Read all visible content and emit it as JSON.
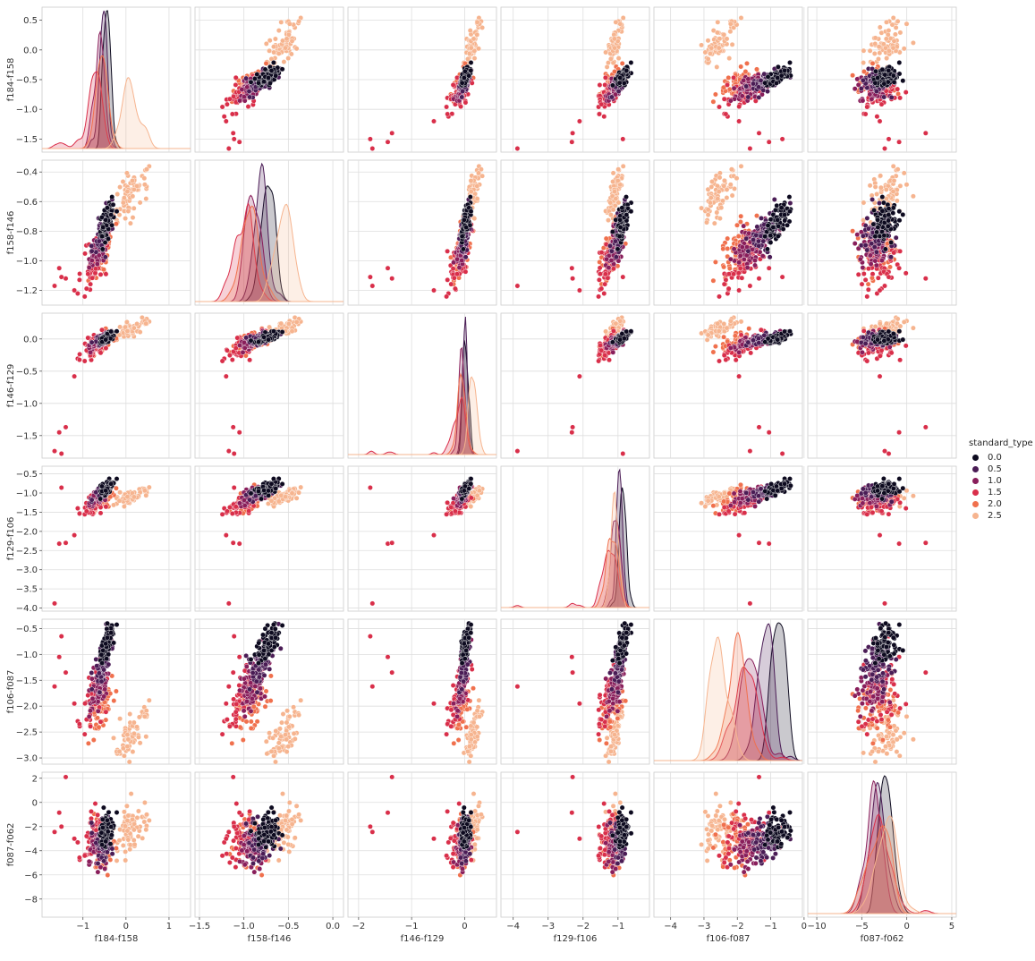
{
  "chart_data": {
    "type": "scatter",
    "kind": "pairplot",
    "hue": "standard_type",
    "diag_kind": "kde",
    "grid": true,
    "legend_placement": "right",
    "variables": [
      "f184-f158",
      "f158-f146",
      "f146-f129",
      "f129-f106",
      "f106-f087",
      "f087-f062"
    ],
    "axes": [
      {
        "name": "f184-f158",
        "lim": [
          -1.95,
          1.5
        ],
        "ticks": [
          -1,
          0,
          1
        ],
        "row_lim": [
          -1.72,
          0.72
        ],
        "row_ticks": [
          -1.5,
          -1.0,
          -0.5,
          0.0,
          0.5
        ],
        "row_tick_labels": [
          "−1.5",
          "−1.0",
          "−0.5",
          "0.0",
          "0.5"
        ]
      },
      {
        "name": "f158-f146",
        "lim": [
          -1.55,
          0.12
        ],
        "ticks": [
          -1.5,
          -1.0,
          -0.5,
          0.0
        ],
        "row_lim": [
          -1.3,
          -0.32
        ],
        "row_ticks": [
          -1.2,
          -1.0,
          -0.8,
          -0.6,
          -0.4
        ],
        "row_tick_labels": [
          "−1.2",
          "−1.0",
          "−0.8",
          "−0.6",
          "−0.4"
        ]
      },
      {
        "name": "f146-f129",
        "lim": [
          -2.2,
          0.6
        ],
        "ticks": [
          -2,
          -1,
          0
        ],
        "row_lim": [
          -1.85,
          0.4
        ],
        "row_ticks": [
          -1.5,
          -1.0,
          -0.5,
          0.0
        ],
        "row_tick_labels": [
          "−1.5",
          "−1.0",
          "−0.5",
          "0.0"
        ]
      },
      {
        "name": "f129-f106",
        "lim": [
          -4.35,
          -0.1
        ],
        "ticks": [
          -4,
          -3,
          -2,
          -1
        ],
        "row_lim": [
          -4.08,
          -0.3
        ],
        "row_ticks": [
          -4.0,
          -3.5,
          -3.0,
          -2.5,
          -2.0,
          -1.5,
          -1.0,
          -0.5
        ],
        "row_tick_labels": [
          "−4.0",
          "−3.5",
          "−3.0",
          "−2.5",
          "−2.0",
          "−1.5",
          "−1.0",
          "−0.5"
        ]
      },
      {
        "name": "f106-f087",
        "lim": [
          -4.5,
          -0.05
        ],
        "ticks": [
          -4,
          -3,
          -2,
          -1,
          0
        ],
        "row_lim": [
          -3.12,
          -0.32
        ],
        "row_ticks": [
          -3.0,
          -2.5,
          -2.0,
          -1.5,
          -1.0,
          -0.5
        ],
        "row_tick_labels": [
          "−3.0",
          "−2.5",
          "−2.0",
          "−1.5",
          "−1.0",
          "−0.5"
        ]
      },
      {
        "name": "f087-f062",
        "lim": [
          -11,
          5.5
        ],
        "ticks": [
          -10,
          -5,
          0,
          5
        ],
        "row_lim": [
          -9.5,
          2.5
        ],
        "row_ticks": [
          -8,
          -6,
          -4,
          -2,
          0,
          2
        ],
        "row_tick_labels": [
          "−8",
          "−6",
          "−4",
          "−2",
          "0",
          "2"
        ]
      }
    ],
    "x_tick_labels": [
      [
        "−1",
        "0",
        "1"
      ],
      [
        "−1.5",
        "−1.0",
        "−0.5",
        "0.0"
      ],
      [
        "−2",
        "−1",
        "0"
      ],
      [
        "−4",
        "−3",
        "−2",
        "−1"
      ],
      [
        "−4",
        "−3",
        "−2",
        "−1",
        "0"
      ],
      [
        "−10",
        "−5",
        "0",
        "5"
      ]
    ],
    "hue_levels": [
      {
        "value": 0.0,
        "label": "0.0",
        "color": "#0d0a1f",
        "mean": [
          -0.45,
          -0.74,
          0.02,
          -0.85,
          -0.78,
          -2.4
        ],
        "std": [
          0.08,
          0.07,
          0.05,
          0.1,
          0.2,
          0.7
        ]
      },
      {
        "value": 0.5,
        "label": "0.5",
        "color": "#4a1c55",
        "mean": [
          -0.52,
          -0.8,
          0.0,
          -0.95,
          -1.15,
          -3.3
        ],
        "std": [
          0.1,
          0.08,
          0.05,
          0.1,
          0.25,
          0.8
        ]
      },
      {
        "value": 1.0,
        "label": "1.0",
        "color": "#891e5b",
        "mean": [
          -0.6,
          -0.88,
          -0.04,
          -1.05,
          -1.5,
          -3.7
        ],
        "std": [
          0.12,
          0.09,
          0.06,
          0.12,
          0.3,
          0.9
        ]
      },
      {
        "value": 1.5,
        "label": "1.5",
        "color": "#d92f4a",
        "mean": [
          -0.72,
          -1.0,
          -0.12,
          -1.25,
          -1.8,
          -3.4
        ],
        "std": [
          0.15,
          0.09,
          0.1,
          0.18,
          0.3,
          1.1
        ]
      },
      {
        "value": 2.0,
        "label": "2.0",
        "color": "#f0704d",
        "mean": [
          -0.55,
          -0.92,
          -0.05,
          -1.15,
          -2.0,
          -3.0
        ],
        "std": [
          0.15,
          0.1,
          0.08,
          0.15,
          0.3,
          1.0
        ]
      },
      {
        "value": 2.5,
        "label": "2.5",
        "color": "#f6b48f",
        "mean": [
          0.1,
          -0.55,
          0.15,
          -1.1,
          -2.55,
          -2.2
        ],
        "std": [
          0.2,
          0.1,
          0.07,
          0.1,
          0.25,
          1.2
        ]
      }
    ],
    "points_per_level": 70,
    "outliers": [
      [
        -1.66,
        -1.17,
        -1.74,
        -3.88,
        -1.62,
        -2.45
      ],
      [
        -1.55,
        -1.05,
        -1.45,
        -2.32,
        -1.05,
        -0.85
      ],
      [
        -1.4,
        -1.12,
        -1.37,
        -2.3,
        -1.35,
        2.1
      ],
      [
        -1.5,
        -1.11,
        -1.78,
        -0.86,
        -0.65,
        -2.0
      ],
      [
        -1.2,
        -1.2,
        -0.58,
        -2.1,
        -1.95,
        -3.0
      ]
    ]
  }
}
